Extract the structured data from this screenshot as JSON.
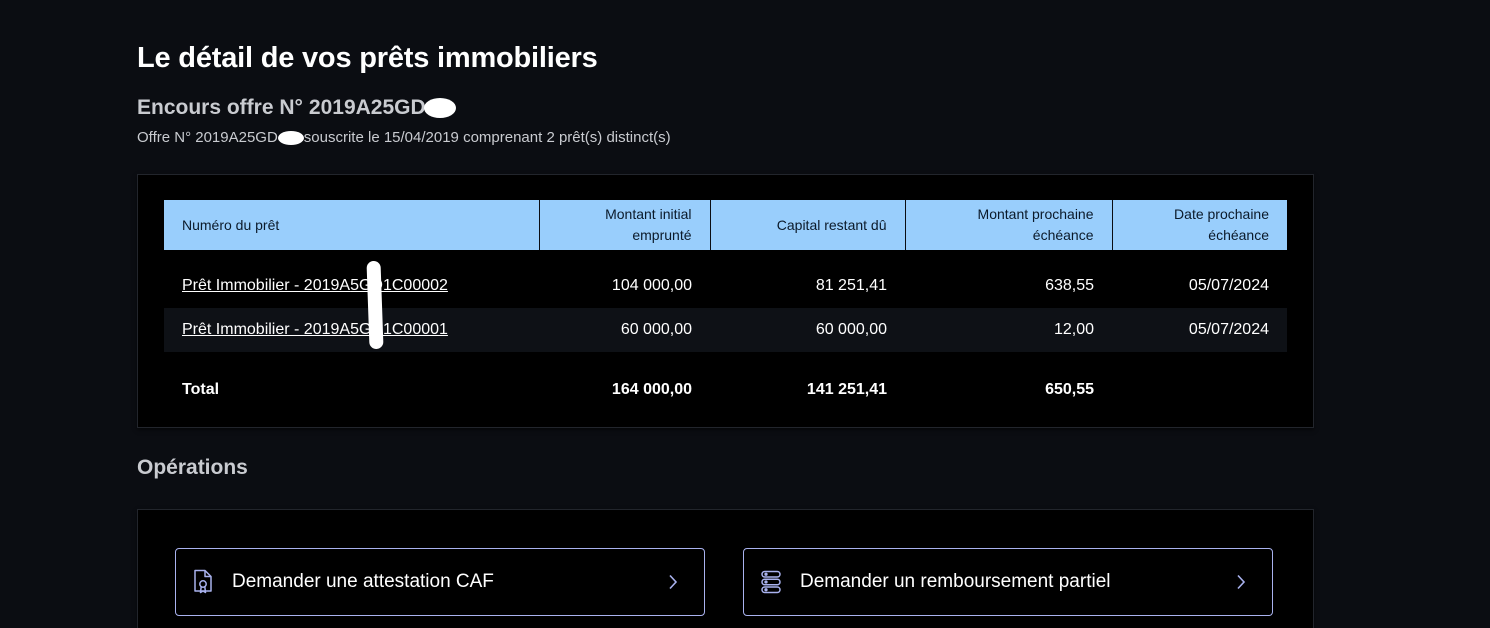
{
  "header": {
    "title": "Le détail de vos prêts immobiliers",
    "subtitle_prefix": "Encours offre N°",
    "subtitle_offer": "2019A25GD",
    "offer_prefix": "Offre N° 2019A25GD",
    "offer_suffix": "souscrite le 15/04/2019 comprenant 2 prêt(s) distinct(s)"
  },
  "loans_table": {
    "columns": [
      "Numéro du prêt",
      "Montant initial emprunté",
      "Capital restant dû",
      "Montant prochaine échéance",
      "Date prochaine échéance"
    ],
    "column_lines": [
      [
        "Numéro du prêt"
      ],
      [
        "Montant initial",
        "emprunté"
      ],
      [
        "Capital restant dû"
      ],
      [
        "Montant prochaine",
        "échéance"
      ],
      [
        "Date prochaine",
        "échéance"
      ]
    ],
    "rows": [
      {
        "loan_prefix": "Prêt Immobilier - 2019A",
        "loan_suffix": "5GD1C00002",
        "initial": "104 000,00",
        "capital": "81 251,41",
        "next_amount": "638,55",
        "next_date": "05/07/2024"
      },
      {
        "loan_prefix": "Prêt Immobilier - 2019A",
        "loan_suffix": "5GD1C00001",
        "initial": "60 000,00",
        "capital": "60 000,00",
        "next_amount": "12,00",
        "next_date": "05/07/2024"
      }
    ],
    "total": {
      "label": "Total",
      "initial": "164 000,00",
      "capital": "141 251,41",
      "next_amount": "650,55"
    }
  },
  "operations": {
    "title": "Opérations",
    "buttons": [
      {
        "label": "Demander une attestation CAF",
        "icon": "document-certificate-icon"
      },
      {
        "label": "Demander un remboursement partiel",
        "icon": "stacked-coins-icon"
      }
    ]
  },
  "colors": {
    "background": "#0b0d12",
    "card": "#000000",
    "table_header": "#99cefc",
    "button_border": "#a9b2ee"
  }
}
